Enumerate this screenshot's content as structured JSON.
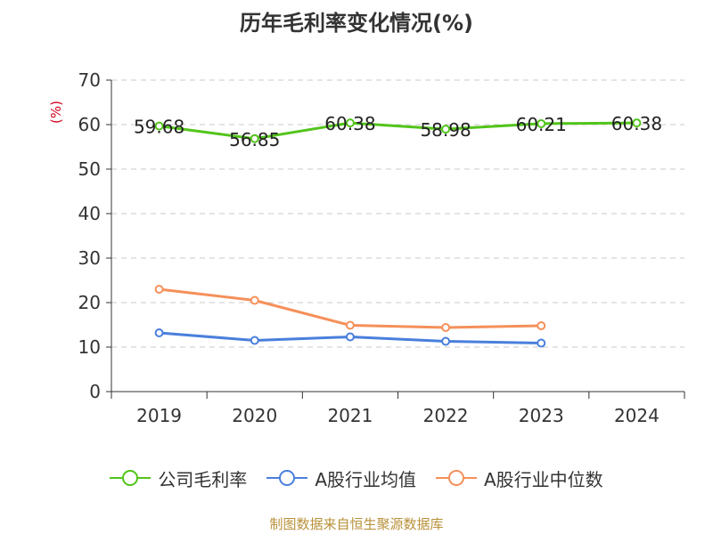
{
  "chart_data": {
    "type": "line",
    "title": "历年毛利率变化情况(%)",
    "ylabel": "(%)",
    "categories": [
      "2019",
      "2020",
      "2021",
      "2022",
      "2023",
      "2024"
    ],
    "ylim": [
      0,
      70
    ],
    "yticks": [
      "0",
      "10",
      "20",
      "30",
      "40",
      "50",
      "60",
      "70"
    ],
    "grid": true,
    "legend_position": "bottom",
    "series": [
      {
        "name": "公司毛利率",
        "color": "#52c41a",
        "values": [
          59.68,
          56.85,
          60.38,
          58.98,
          60.21,
          60.38
        ],
        "labels": [
          "59.68",
          "56.85",
          "60.38",
          "58.98",
          "60.21",
          "60.38"
        ]
      },
      {
        "name": "A股行业均值",
        "color": "#4a7fdc",
        "values": [
          13.2,
          11.5,
          12.3,
          11.3,
          10.9,
          null
        ],
        "labels": []
      },
      {
        "name": "A股行业中位数",
        "color": "#f5905a",
        "values": [
          23.0,
          20.5,
          14.9,
          14.4,
          14.8,
          null
        ],
        "labels": []
      }
    ]
  },
  "source": "制图数据来自恒生聚源数据库"
}
